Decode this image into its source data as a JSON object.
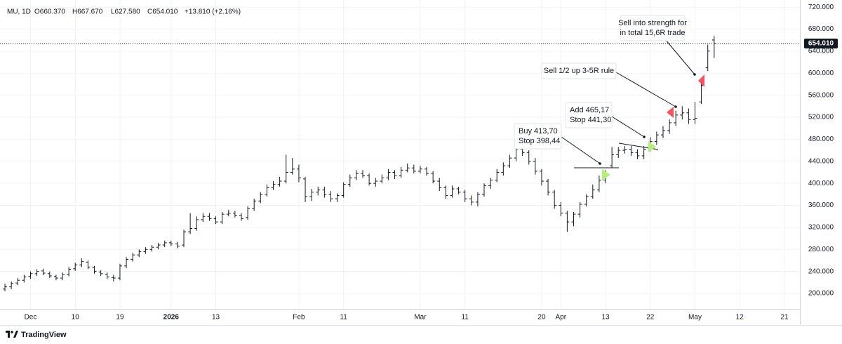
{
  "chart_data": {
    "type": "ohlc",
    "header": {
      "symbol": "MU, 1D",
      "open": "O660.370",
      "high": "H667.670",
      "low": "L627.580",
      "close": "C654.010",
      "change": "+13.810 (+2.16%)"
    },
    "brand": "TradingView",
    "color": "#131722",
    "grid": true,
    "categories": [
      null,
      null,
      null,
      null,
      "Dec",
      null,
      null,
      null,
      null,
      null,
      null,
      "10",
      null,
      null,
      null,
      null,
      null,
      null,
      "19",
      null,
      null,
      null,
      null,
      null,
      null,
      null,
      "2026",
      null,
      null,
      null,
      null,
      null,
      null,
      "13",
      null,
      null,
      null,
      null,
      null,
      null,
      null,
      null,
      null,
      null,
      null,
      null,
      "Feb",
      null,
      null,
      null,
      null,
      null,
      null,
      "11",
      null,
      null,
      null,
      null,
      null,
      null,
      null,
      null,
      null,
      null,
      null,
      "Mar",
      null,
      null,
      null,
      null,
      null,
      null,
      "11",
      null,
      null,
      null,
      null,
      null,
      null,
      null,
      null,
      null,
      null,
      null,
      "20",
      null,
      null,
      "Apr",
      null,
      null,
      null,
      null,
      null,
      null,
      "13",
      null,
      null,
      null,
      null,
      null,
      null,
      "22",
      null,
      null,
      null,
      null,
      null,
      null,
      "May",
      null,
      null,
      null,
      null,
      null,
      null,
      "12",
      null,
      null,
      null,
      null,
      null,
      null,
      "21",
      null
    ],
    "open": [
      208,
      212,
      219,
      224,
      231,
      236,
      241,
      236,
      231,
      228,
      235,
      245,
      252,
      257,
      247,
      239,
      235,
      229,
      228,
      250,
      262,
      270,
      276,
      280,
      284,
      288,
      292,
      290,
      288,
      312,
      318,
      334,
      340,
      336,
      330,
      344,
      346,
      342,
      338,
      354,
      368,
      380,
      392,
      398,
      404,
      420,
      426,
      408,
      376,
      384,
      388,
      380,
      372,
      378,
      398,
      410,
      418,
      414,
      400,
      404,
      410,
      420,
      414,
      424,
      428,
      422,
      426,
      418,
      404,
      392,
      378,
      390,
      384,
      372,
      366,
      380,
      396,
      406,
      420,
      432,
      446,
      462,
      456,
      440,
      422,
      404,
      384,
      360,
      346,
      330,
      344,
      362,
      376,
      388,
      406,
      432,
      452,
      460,
      462,
      456,
      450,
      462,
      476,
      488,
      496,
      510,
      524,
      528,
      516,
      548,
      610,
      660.37,
      null,
      null,
      null,
      null,
      null,
      null,
      null,
      null,
      null,
      null,
      null,
      null
    ],
    "high": [
      218,
      222,
      228,
      234,
      240,
      244,
      245,
      240,
      234,
      238,
      248,
      256,
      264,
      260,
      250,
      242,
      238,
      234,
      254,
      266,
      274,
      280,
      284,
      288,
      292,
      296,
      296,
      294,
      316,
      346,
      340,
      346,
      346,
      340,
      348,
      352,
      350,
      346,
      358,
      372,
      384,
      398,
      404,
      412,
      452,
      446,
      434,
      412,
      390,
      394,
      394,
      386,
      382,
      402,
      416,
      424,
      424,
      418,
      410,
      416,
      426,
      424,
      430,
      436,
      434,
      432,
      430,
      422,
      410,
      396,
      396,
      394,
      388,
      378,
      384,
      400,
      410,
      426,
      438,
      452,
      470,
      468,
      460,
      446,
      426,
      408,
      388,
      366,
      350,
      348,
      366,
      380,
      398,
      414,
      424,
      466,
      466,
      468,
      468,
      462,
      468,
      484,
      494,
      504,
      516,
      532,
      540,
      536,
      548,
      592,
      652,
      667.67,
      null,
      null,
      null,
      null,
      null,
      null,
      null,
      null,
      null,
      null,
      null,
      null
    ],
    "low": [
      204,
      208,
      215,
      220,
      227,
      232,
      233,
      228,
      224,
      224,
      231,
      241,
      248,
      244,
      236,
      232,
      226,
      222,
      224,
      246,
      258,
      266,
      272,
      276,
      280,
      284,
      286,
      282,
      284,
      308,
      314,
      330,
      332,
      326,
      326,
      340,
      338,
      332,
      334,
      350,
      364,
      376,
      388,
      394,
      400,
      416,
      402,
      366,
      368,
      378,
      374,
      366,
      366,
      374,
      394,
      406,
      410,
      396,
      394,
      400,
      406,
      408,
      410,
      420,
      418,
      418,
      414,
      400,
      386,
      372,
      374,
      380,
      366,
      360,
      358,
      376,
      390,
      402,
      414,
      428,
      440,
      450,
      434,
      416,
      396,
      378,
      354,
      340,
      312,
      322,
      338,
      358,
      372,
      384,
      400,
      428,
      446,
      454,
      450,
      444,
      444,
      458,
      470,
      482,
      490,
      504,
      516,
      508,
      508,
      544,
      604,
      627.58,
      null,
      null,
      null,
      null,
      null,
      null,
      null,
      null,
      null,
      null,
      null,
      null
    ],
    "close": [
      212,
      218,
      224,
      230,
      236,
      240,
      237,
      232,
      228,
      234,
      244,
      252,
      258,
      248,
      240,
      236,
      230,
      228,
      250,
      262,
      270,
      276,
      280,
      284,
      288,
      292,
      290,
      286,
      312,
      318,
      334,
      340,
      336,
      330,
      344,
      346,
      342,
      336,
      354,
      368,
      380,
      392,
      398,
      404,
      420,
      426,
      410,
      376,
      384,
      388,
      380,
      372,
      378,
      398,
      410,
      418,
      414,
      400,
      404,
      410,
      420,
      414,
      424,
      428,
      422,
      426,
      418,
      404,
      392,
      378,
      390,
      384,
      372,
      366,
      380,
      396,
      406,
      420,
      432,
      446,
      462,
      456,
      440,
      422,
      404,
      384,
      360,
      346,
      330,
      344,
      362,
      376,
      388,
      406,
      414,
      452,
      460,
      462,
      456,
      450,
      462,
      476,
      488,
      496,
      510,
      524,
      528,
      516,
      518,
      578,
      640.2,
      654.01,
      null,
      null,
      null,
      null,
      null,
      null,
      null,
      null,
      null,
      null,
      null,
      null
    ],
    "ylim": [
      172,
      733
    ],
    "yticks": [
      {
        "value": 200,
        "label": "200.000"
      },
      {
        "value": 240,
        "label": "240.000"
      },
      {
        "value": 280,
        "label": "280.000"
      },
      {
        "value": 320,
        "label": "320.000"
      },
      {
        "value": 360,
        "label": "360.000"
      },
      {
        "value": 400,
        "label": "400.000"
      },
      {
        "value": 440,
        "label": "440.000"
      },
      {
        "value": 480,
        "label": "480.000"
      },
      {
        "value": 520,
        "label": "520.000"
      },
      {
        "value": 560,
        "label": "560.000"
      },
      {
        "value": 600,
        "label": "600.000"
      },
      {
        "value": 640,
        "label": "640.000"
      },
      {
        "value": 680,
        "label": "680.000"
      },
      {
        "value": 720,
        "label": "720.000"
      }
    ],
    "last_price": {
      "value": 654.01,
      "label": "654.010"
    },
    "annotations": [
      {
        "lines": [
          "Sell into strength for",
          "in total 15,6R trade"
        ]
      },
      {
        "lines": [
          "Sell 1/2 up 3-5R rule"
        ]
      },
      {
        "lines": [
          "Add 465,17",
          "Stop 441,30"
        ]
      },
      {
        "lines": [
          "Buy 413,70",
          "Stop 398,44"
        ]
      }
    ]
  }
}
